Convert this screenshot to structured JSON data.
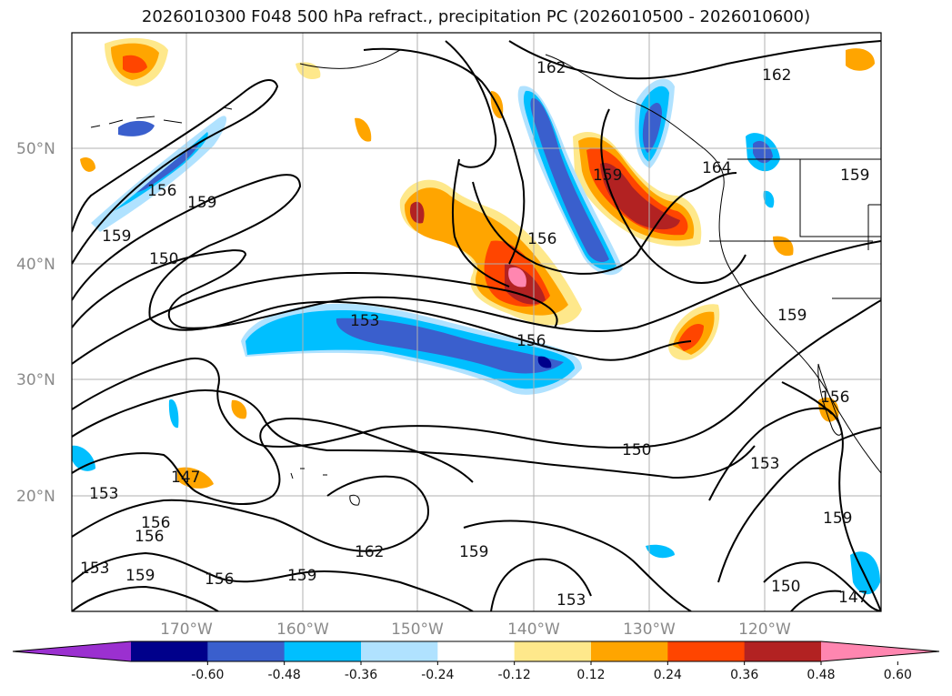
{
  "title": "2026010300 F048 500 hPa refract., precipitation PC (2026010500 - 2026010600)",
  "latitude_labels": [
    "50°N",
    "40°N",
    "30°N",
    "20°N"
  ],
  "longitude_labels": [
    "170°W",
    "160°W",
    "150°W",
    "140°W",
    "130°W",
    "120°W"
  ],
  "contour_labels": [
    "162",
    "162",
    "159",
    "156",
    "159",
    "159",
    "150",
    "156",
    "153",
    "156",
    "164",
    "159",
    "159",
    "150",
    "153",
    "156",
    "159",
    "153",
    "156",
    "153",
    "159",
    "162",
    "147",
    "159",
    "150",
    "147",
    "153",
    "159",
    "156",
    "156"
  ],
  "colorbar": {
    "ticks": [
      "-0.60",
      "-0.48",
      "-0.36",
      "-0.24",
      "-0.12",
      "0.12",
      "0.24",
      "0.36",
      "0.48",
      "0.60"
    ],
    "colors": [
      "#9b30d0",
      "#00008b",
      "#3a5fcd",
      "#00bfff",
      "#b0e2ff",
      "#ffffff",
      "#fee88b",
      "#ffa500",
      "#ff4500",
      "#b22222",
      "#ff86b0"
    ]
  },
  "colors": {
    "land_outline": "#000000",
    "contour": "#000000",
    "grid": "#b0b0b0",
    "axis_text": "#8a8a8a"
  }
}
